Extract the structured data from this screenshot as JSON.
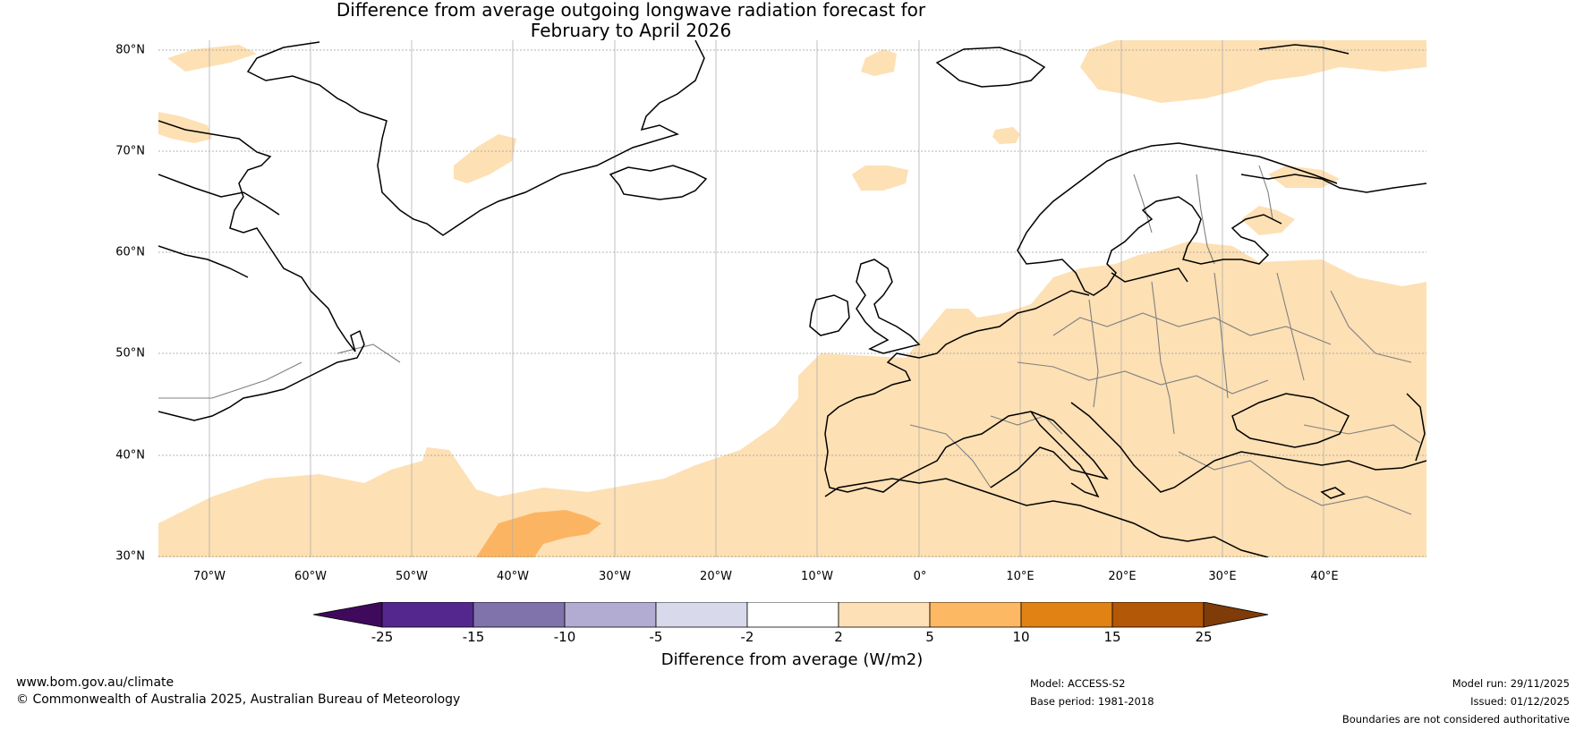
{
  "title": {
    "line1": "Difference from average outgoing longwave radiation forecast for",
    "line2": "February to April 2026"
  },
  "map": {
    "lat_labels": [
      "80°N",
      "70°N",
      "60°N",
      "50°N",
      "40°N",
      "30°N"
    ],
    "lon_labels": [
      "70°W",
      "60°W",
      "50°W",
      "40°W",
      "30°W",
      "20°W",
      "10°W",
      "0°",
      "10°E",
      "20°E",
      "30°E",
      "40°E"
    ],
    "anomaly_colors": {
      "light_orange_2_to_5": "#fde0b4",
      "orange_5_to_10": "#fbb562"
    }
  },
  "colorbar": {
    "tick_labels": [
      "-25",
      "-15",
      "-10",
      "-5",
      "-2",
      "2",
      "5",
      "10",
      "15",
      "25"
    ],
    "colors": [
      "#3f0a5c",
      "#54278f",
      "#8073ac",
      "#b2abd2",
      "#d8daeb",
      "#ffffff",
      "#fee0b6",
      "#fdb863",
      "#e08214",
      "#b35806",
      "#7f3b08"
    ],
    "label": "Difference from average (W/m2)"
  },
  "footer": {
    "website": "www.bom.gov.au/climate",
    "copyright": "© Commonwealth of Australia 2025, Australian Bureau of Meteorology",
    "model": "Model: ACCESS-S2",
    "base_period": "Base period: 1981-2018",
    "model_run": "Model run: 29/11/2025",
    "issued": "Issued: 01/12/2025",
    "disclaimer": "Boundaries are not considered authoritative"
  }
}
